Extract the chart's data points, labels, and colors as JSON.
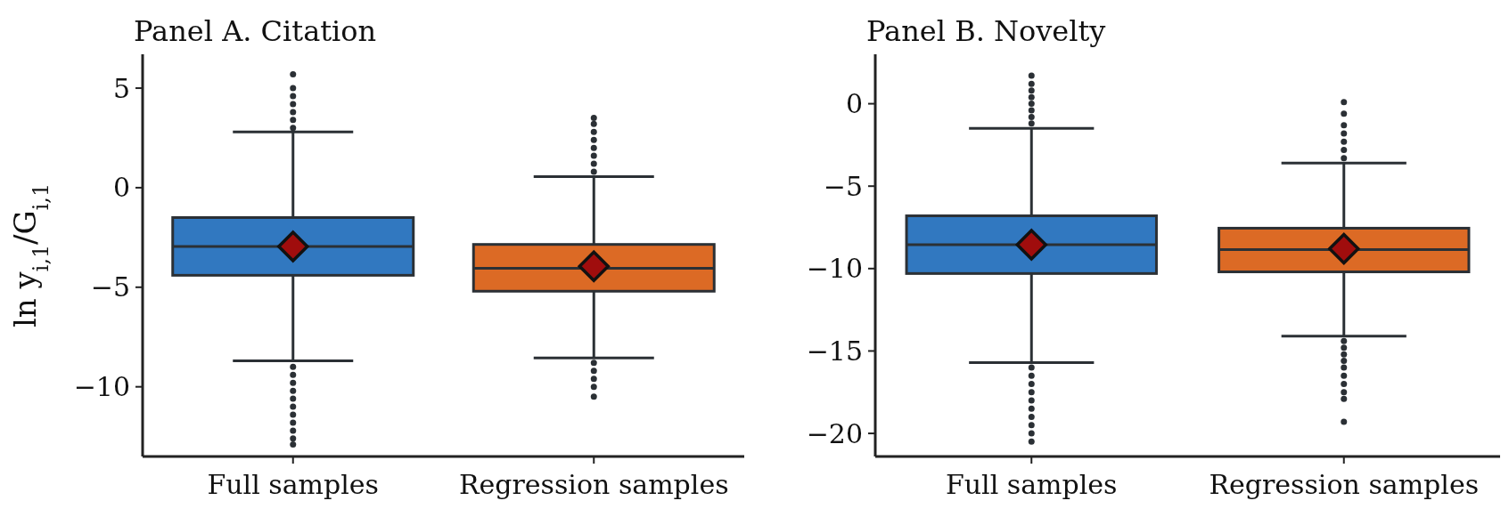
{
  "chart_data": [
    {
      "type": "box",
      "title": "Panel A. Citation",
      "ylabel": "ln y$_{i,1}$/G$_{i,1}$",
      "categories": [
        "Full samples",
        "Regression samples"
      ],
      "colors": [
        "#3178c0",
        "#dc6a25"
      ],
      "ylim": [
        -13.5,
        6.7
      ],
      "yticks": [
        {
          "value": 5,
          "label": "5"
        },
        {
          "value": 0,
          "label": "0"
        },
        {
          "value": -5,
          "label": "−5"
        },
        {
          "value": -10,
          "label": "−10"
        }
      ],
      "boxes": [
        {
          "low": -8.7,
          "q1": -4.4,
          "median": -2.95,
          "q3": -1.5,
          "high": 2.8,
          "mean": -2.95,
          "outliers": [
            3.0,
            3.4,
            3.8,
            4.2,
            4.6,
            5.0,
            5.7,
            -9.0,
            -9.4,
            -9.8,
            -10.2,
            -10.6,
            -11.0,
            -11.4,
            -11.8,
            -12.2,
            -12.6,
            -12.9
          ]
        },
        {
          "low": -8.55,
          "q1": -5.2,
          "median": -4.05,
          "q3": -2.85,
          "high": 0.55,
          "mean": -3.95,
          "outliers": [
            0.8,
            1.2,
            1.6,
            2.0,
            2.4,
            2.8,
            3.2,
            3.5,
            -8.8,
            -9.2,
            -9.6,
            -10.0,
            -10.5
          ]
        }
      ]
    },
    {
      "type": "box",
      "title": "Panel B. Novelty",
      "categories": [
        "Full samples",
        "Regression samples"
      ],
      "colors": [
        "#3178c0",
        "#dc6a25"
      ],
      "ylim": [
        -21.4,
        3
      ],
      "yticks": [
        {
          "value": 0,
          "label": "0"
        },
        {
          "value": -5,
          "label": "−5"
        },
        {
          "value": -10,
          "label": "−10"
        },
        {
          "value": -15,
          "label": "−15"
        },
        {
          "value": -20,
          "label": "−20"
        }
      ],
      "boxes": [
        {
          "low": -15.7,
          "q1": -10.3,
          "median": -8.55,
          "q3": -6.8,
          "high": -1.5,
          "mean": -8.55,
          "outliers": [
            -1.2,
            -0.8,
            -0.4,
            0.0,
            0.4,
            0.8,
            1.2,
            1.7,
            -16.0,
            -16.5,
            -17.0,
            -17.5,
            -18.0,
            -18.5,
            -19.0,
            -19.5,
            -20.0,
            -20.5
          ]
        },
        {
          "low": -14.1,
          "q1": -10.2,
          "median": -8.85,
          "q3": -7.55,
          "high": -3.6,
          "mean": -8.8,
          "outliers": [
            -3.3,
            -2.8,
            -2.3,
            -1.8,
            -1.3,
            -0.6,
            0.1,
            -14.4,
            -14.8,
            -15.2,
            -15.6,
            -16.0,
            -16.5,
            -17.0,
            -17.5,
            -17.9,
            -19.3
          ]
        }
      ]
    }
  ]
}
